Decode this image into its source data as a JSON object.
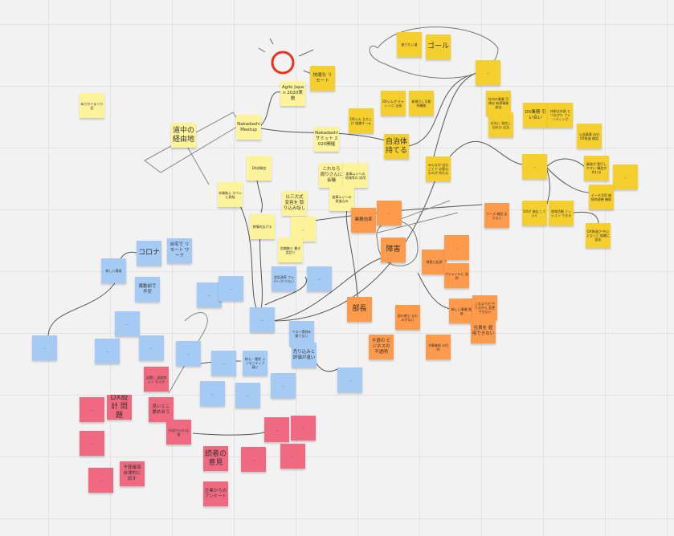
{
  "colors": {
    "light_yellow": "#fdf39b",
    "gold": "#f5cf2e",
    "orange": "#fd9a4b",
    "blue": "#a5cbf4",
    "pink": "#ef6a80",
    "sun_scribble": "#e8341c"
  },
  "notes": [
    {
      "text": "ぬりかべまつり 話",
      "color": "light_yellow"
    },
    {
      "text": "道中の 経由地",
      "color": "light_yellow"
    },
    {
      "text": "Nakadashi Meetup",
      "color": "light_yellow"
    },
    {
      "text": "Agile Japan 2020実施",
      "color": "light_yellow"
    },
    {
      "text": "Nakadashi サミット 2020開催",
      "color": "light_yellow"
    },
    {
      "text": "DX試験会",
      "color": "light_yellow"
    },
    {
      "text": "本開催よ スペシに昇級",
      "color": "light_yellow"
    },
    {
      "text": "以三大式 変容を 取り込み話し",
      "color": "light_yellow"
    },
    {
      "text": "感情的広げる",
      "color": "light_yellow"
    },
    {
      "text": "…",
      "color": "light_yellow"
    },
    {
      "text": "信頼集り 書き会話り",
      "color": "light_yellow"
    },
    {
      "text": "これなら 周りさんに 会議",
      "color": "light_yellow"
    },
    {
      "text": "倉庫ムジへの 地域等の 試用",
      "color": "light_yellow"
    },
    {
      "text": "倉庫ムジへの 昇進込み",
      "color": "light_yellow"
    },
    {
      "text": "快適な リモート",
      "color": "gold"
    },
    {
      "text": "DXジム 立ち上げ 組織チーム",
      "color": "gold"
    },
    {
      "text": "座りたい道",
      "color": "gold"
    },
    {
      "text": "ゴール",
      "color": "gold"
    },
    {
      "text": "…",
      "color": "gold"
    },
    {
      "text": "DXジムが チャレンジ 企画",
      "color": "gold"
    },
    {
      "text": "新規立し可能 何機能",
      "color": "gold"
    },
    {
      "text": "自治体 持てる",
      "color": "gold"
    },
    {
      "text": "みんなが 自分ごとで 必要なものが 作れる",
      "color": "gold"
    },
    {
      "text": "社内の事業 可視化 新規事業 創出",
      "color": "gold"
    },
    {
      "text": "社外に 発信し 自社の 広告",
      "color": "gold"
    },
    {
      "text": "DX業務 引い合い",
      "color": "gold"
    },
    {
      "text": "技術は外部 とつながり ブレンディング",
      "color": "gold"
    },
    {
      "text": "公益事業 自分 DX推進 確認",
      "color": "gold"
    },
    {
      "text": "…",
      "color": "gold"
    },
    {
      "text": "業務が 実行しやすい 構造が作れる",
      "color": "gold"
    },
    {
      "text": "…",
      "color": "gold"
    },
    {
      "text": "データ活用 継続的改善 機能",
      "color": "gold"
    },
    {
      "text": "DXが 進化 して いく",
      "color": "gold"
    },
    {
      "text": "地域活動 ミッション できる",
      "color": "gold"
    },
    {
      "text": "DX推進が 中心となって 組織に変化",
      "color": "gold"
    },
    {
      "text": "業務効率",
      "color": "orange"
    },
    {
      "text": "…",
      "color": "orange"
    },
    {
      "text": "障害",
      "color": "orange"
    },
    {
      "text": "障害と起源",
      "color": "orange"
    },
    {
      "text": "…",
      "color": "orange"
    },
    {
      "text": "アジャイルに 説明",
      "color": "orange"
    },
    {
      "text": "ニーズ 確認 足りない",
      "color": "orange"
    },
    {
      "text": "部長",
      "color": "orange"
    },
    {
      "text": "部の勇士 なものがない",
      "color": "orange"
    },
    {
      "text": "新しい事業 推進",
      "color": "orange"
    },
    {
      "text": "これまでの やり方から 変更できない",
      "color": "orange"
    },
    {
      "text": "社員を 雇用できない",
      "color": "orange"
    },
    {
      "text": "今週の ビジネスの 不透明",
      "color": "orange"
    },
    {
      "text": "予算確保 の目的",
      "color": "orange"
    },
    {
      "text": "コロナ",
      "color": "blue"
    },
    {
      "text": "自宅で リモート ワーク",
      "color": "blue"
    },
    {
      "text": "新しい環境",
      "color": "blue"
    },
    {
      "text": "異動前で 不安",
      "color": "blue"
    },
    {
      "text": "…",
      "color": "blue"
    },
    {
      "text": "…",
      "color": "blue"
    },
    {
      "text": "…",
      "color": "blue"
    },
    {
      "text": "…",
      "color": "blue"
    },
    {
      "text": "…",
      "color": "blue"
    },
    {
      "text": "…",
      "color": "blue"
    },
    {
      "text": "…",
      "color": "blue"
    },
    {
      "text": "会話改革 フォローが 少ない",
      "color": "blue"
    },
    {
      "text": "…",
      "color": "blue"
    },
    {
      "text": "…",
      "color": "blue"
    },
    {
      "text": "ベスト実践を 観てない",
      "color": "blue"
    },
    {
      "text": "売り込みと 評価が違い",
      "color": "blue"
    },
    {
      "text": "…",
      "color": "blue"
    },
    {
      "text": "…",
      "color": "blue"
    },
    {
      "text": "抱え・運営 インセンティブ 弱い",
      "color": "blue"
    },
    {
      "text": "…",
      "color": "blue"
    },
    {
      "text": "…",
      "color": "blue"
    },
    {
      "text": "…",
      "color": "blue"
    },
    {
      "text": "話題し 温度感よく 伝える",
      "color": "pink"
    },
    {
      "text": "…",
      "color": "pink"
    },
    {
      "text": "DX設計 問題",
      "color": "pink"
    },
    {
      "text": "良いとこ 褒め合う",
      "color": "pink"
    },
    {
      "text": "…",
      "color": "pink"
    },
    {
      "text": "外部からの 応援",
      "color": "pink"
    },
    {
      "text": "…",
      "color": "pink"
    },
    {
      "text": "…",
      "color": "pink"
    },
    {
      "text": "読者の 意見",
      "color": "pink"
    },
    {
      "text": "…",
      "color": "pink"
    },
    {
      "text": "…",
      "color": "pink"
    },
    {
      "text": "予算確保 自律的に 試す",
      "color": "pink"
    },
    {
      "text": "…",
      "color": "pink"
    },
    {
      "text": "企業からの アンケート",
      "color": "pink"
    }
  ]
}
